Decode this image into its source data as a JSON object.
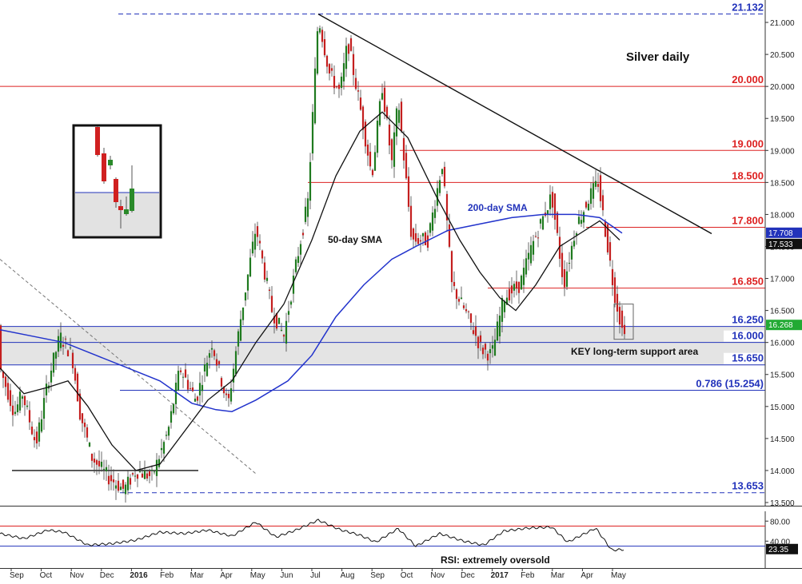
{
  "chart_data": [
    {
      "type": "candlestick",
      "title": "Silver daily",
      "ylim": [
        13.45,
        21.35
      ],
      "x_ticks": [
        "Sep",
        "Oct",
        "Nov",
        "Dec",
        "2016",
        "Feb",
        "Mar",
        "Apr",
        "May",
        "Jun",
        "Jul",
        "Aug",
        "Sep",
        "Oct",
        "Nov",
        "Dec",
        "2017",
        "Feb",
        "Mar",
        "Apr",
        "May"
      ],
      "y_ticks": [
        "21.000",
        "20.500",
        "20.000",
        "19.500",
        "19.000",
        "18.500",
        "18.000",
        "17.500",
        "17.000",
        "16.500",
        "16.000",
        "15.500",
        "15.000",
        "14.500",
        "14.000",
        "13.500"
      ],
      "y_tick_values": [
        21.0,
        20.5,
        20.0,
        19.5,
        19.0,
        18.5,
        18.0,
        17.5,
        17.0,
        16.5,
        16.0,
        15.5,
        15.0,
        14.5,
        14.0,
        13.5
      ],
      "price_path": [
        {
          "t": 0,
          "v": 15.6
        },
        {
          "t": 18,
          "v": 14.9
        },
        {
          "t": 28,
          "v": 15.2
        },
        {
          "t": 45,
          "v": 14.4
        },
        {
          "t": 60,
          "v": 15.4
        },
        {
          "t": 75,
          "v": 16.1
        },
        {
          "t": 90,
          "v": 15.8
        },
        {
          "t": 100,
          "v": 14.9
        },
        {
          "t": 115,
          "v": 14.2
        },
        {
          "t": 135,
          "v": 13.9
        },
        {
          "t": 155,
          "v": 13.7
        },
        {
          "t": 170,
          "v": 14.0
        },
        {
          "t": 190,
          "v": 13.9
        },
        {
          "t": 210,
          "v": 14.6
        },
        {
          "t": 225,
          "v": 15.6
        },
        {
          "t": 245,
          "v": 15.1
        },
        {
          "t": 265,
          "v": 16.0
        },
        {
          "t": 285,
          "v": 15.0
        },
        {
          "t": 300,
          "v": 16.3
        },
        {
          "t": 320,
          "v": 17.8
        },
        {
          "t": 340,
          "v": 16.5
        },
        {
          "t": 355,
          "v": 16.1
        },
        {
          "t": 370,
          "v": 17.2
        },
        {
          "t": 385,
          "v": 18.2
        },
        {
          "t": 398,
          "v": 21.1
        },
        {
          "t": 412,
          "v": 20.2
        },
        {
          "t": 425,
          "v": 19.9
        },
        {
          "t": 435,
          "v": 20.7
        },
        {
          "t": 450,
          "v": 19.7
        },
        {
          "t": 465,
          "v": 18.6
        },
        {
          "t": 478,
          "v": 20.0
        },
        {
          "t": 490,
          "v": 18.8
        },
        {
          "t": 498,
          "v": 19.8
        },
        {
          "t": 515,
          "v": 17.6
        },
        {
          "t": 535,
          "v": 17.6
        },
        {
          "t": 553,
          "v": 18.8
        },
        {
          "t": 565,
          "v": 16.9
        },
        {
          "t": 585,
          "v": 16.4
        },
        {
          "t": 602,
          "v": 15.9
        },
        {
          "t": 615,
          "v": 15.8
        },
        {
          "t": 630,
          "v": 16.7
        },
        {
          "t": 650,
          "v": 16.9
        },
        {
          "t": 665,
          "v": 17.5
        },
        {
          "t": 690,
          "v": 18.3
        },
        {
          "t": 705,
          "v": 16.9
        },
        {
          "t": 720,
          "v": 17.8
        },
        {
          "t": 738,
          "v": 18.3
        },
        {
          "t": 748,
          "v": 18.5
        },
        {
          "t": 760,
          "v": 17.5
        },
        {
          "t": 768,
          "v": 16.8
        },
        {
          "t": 778,
          "v": 16.2
        },
        {
          "t": 782,
          "v": 16.27
        }
      ],
      "sma_50": [
        {
          "t": 0,
          "v": 15.6
        },
        {
          "t": 30,
          "v": 15.2
        },
        {
          "t": 60,
          "v": 15.3
        },
        {
          "t": 85,
          "v": 15.4
        },
        {
          "t": 110,
          "v": 15.0
        },
        {
          "t": 140,
          "v": 14.4
        },
        {
          "t": 170,
          "v": 14.0
        },
        {
          "t": 200,
          "v": 14.1
        },
        {
          "t": 230,
          "v": 14.6
        },
        {
          "t": 260,
          "v": 15.1
        },
        {
          "t": 290,
          "v": 15.4
        },
        {
          "t": 320,
          "v": 16.0
        },
        {
          "t": 355,
          "v": 16.6
        },
        {
          "t": 390,
          "v": 17.6
        },
        {
          "t": 420,
          "v": 18.6
        },
        {
          "t": 450,
          "v": 19.3
        },
        {
          "t": 478,
          "v": 19.6
        },
        {
          "t": 510,
          "v": 19.2
        },
        {
          "t": 545,
          "v": 18.3
        },
        {
          "t": 575,
          "v": 17.6
        },
        {
          "t": 600,
          "v": 17.1
        },
        {
          "t": 625,
          "v": 16.7
        },
        {
          "t": 645,
          "v": 16.5
        },
        {
          "t": 670,
          "v": 16.9
        },
        {
          "t": 700,
          "v": 17.5
        },
        {
          "t": 725,
          "v": 17.7
        },
        {
          "t": 750,
          "v": 17.9
        },
        {
          "t": 775,
          "v": 17.6
        }
      ],
      "sma_200": [
        {
          "t": 0,
          "v": 16.2
        },
        {
          "t": 40,
          "v": 16.1
        },
        {
          "t": 80,
          "v": 16.0
        },
        {
          "t": 120,
          "v": 15.8
        },
        {
          "t": 160,
          "v": 15.6
        },
        {
          "t": 200,
          "v": 15.4
        },
        {
          "t": 240,
          "v": 15.05
        },
        {
          "t": 270,
          "v": 14.95
        },
        {
          "t": 290,
          "v": 14.92
        },
        {
          "t": 320,
          "v": 15.1
        },
        {
          "t": 360,
          "v": 15.4
        },
        {
          "t": 390,
          "v": 15.8
        },
        {
          "t": 420,
          "v": 16.4
        },
        {
          "t": 455,
          "v": 16.9
        },
        {
          "t": 490,
          "v": 17.3
        },
        {
          "t": 520,
          "v": 17.5
        },
        {
          "t": 560,
          "v": 17.75
        },
        {
          "t": 600,
          "v": 17.85
        },
        {
          "t": 640,
          "v": 17.95
        },
        {
          "t": 680,
          "v": 18.0
        },
        {
          "t": 720,
          "v": 18.0
        },
        {
          "t": 750,
          "v": 17.95
        },
        {
          "t": 778,
          "v": 17.71
        }
      ],
      "levels": [
        {
          "label": "21.132",
          "value": 21.132,
          "color": "#2233bb",
          "style": "dashed"
        },
        {
          "label": "20.000",
          "value": 20.0,
          "color": "#dd2222",
          "style": "solid"
        },
        {
          "label": "19.000",
          "value": 19.0,
          "color": "#dd2222",
          "style": "solid"
        },
        {
          "label": "18.500",
          "value": 18.5,
          "color": "#dd2222",
          "style": "solid"
        },
        {
          "label": "17.800",
          "value": 17.8,
          "color": "#dd2222",
          "style": "solid"
        },
        {
          "label": "16.850",
          "value": 16.85,
          "color": "#dd2222",
          "style": "solid"
        },
        {
          "label": "16.250",
          "value": 16.25,
          "color": "#2233bb",
          "style": "solid"
        },
        {
          "label": "16.000",
          "value": 16.0,
          "color": "#2233bb",
          "style": "solid"
        },
        {
          "label": "15.650",
          "value": 15.65,
          "color": "#2233bb",
          "style": "solid"
        },
        {
          "label": "0.786 (15.254)",
          "value": 15.254,
          "color": "#2233bb",
          "style": "solid"
        },
        {
          "label": "13.653",
          "value": 13.653,
          "color": "#2233bb",
          "style": "dashed"
        }
      ],
      "price_tags": [
        {
          "label": "17.708",
          "value": 17.708,
          "bg": "#2233bb",
          "fg": "#ffffff"
        },
        {
          "label": "17.533",
          "value": 17.533,
          "bg": "#111111",
          "fg": "#ffffff"
        },
        {
          "label": "16.268",
          "value": 16.268,
          "bg": "#22aa33",
          "fg": "#ffffff"
        }
      ],
      "annotations": [
        "50-day SMA",
        "200-day SMA",
        "KEY long-term support area"
      ],
      "support_zone": [
        15.65,
        16.25
      ],
      "trendline": [
        {
          "t": 398,
          "v": 21.13
        },
        {
          "t": 890,
          "v": 17.7
        }
      ],
      "old_downtrend": [
        {
          "t": 0,
          "v": 17.3
        },
        {
          "t": 320,
          "v": 13.95
        }
      ],
      "low_line": {
        "value": 14.0,
        "t_from": 15,
        "t_to": 248
      }
    },
    {
      "type": "line",
      "title": "RSI: extremely oversold",
      "ylim": [
        15,
        90
      ],
      "y_ticks": [
        "80.00",
        "40.00"
      ],
      "y_tick_values": [
        80,
        40
      ],
      "levels": [
        {
          "value": 70,
          "color": "#dd2222"
        },
        {
          "value": 30,
          "color": "#2233bb"
        }
      ],
      "current_tag": {
        "label": "23.35",
        "value": 23.35,
        "bg": "#111111",
        "fg": "#ffffff"
      },
      "rsi_path": [
        {
          "t": 0,
          "v": 55
        },
        {
          "t": 30,
          "v": 45
        },
        {
          "t": 60,
          "v": 62
        },
        {
          "t": 80,
          "v": 58
        },
        {
          "t": 110,
          "v": 32
        },
        {
          "t": 140,
          "v": 35
        },
        {
          "t": 170,
          "v": 42
        },
        {
          "t": 200,
          "v": 58
        },
        {
          "t": 230,
          "v": 55
        },
        {
          "t": 260,
          "v": 62
        },
        {
          "t": 290,
          "v": 50
        },
        {
          "t": 320,
          "v": 78
        },
        {
          "t": 345,
          "v": 48
        },
        {
          "t": 370,
          "v": 62
        },
        {
          "t": 398,
          "v": 82
        },
        {
          "t": 425,
          "v": 63
        },
        {
          "t": 450,
          "v": 52
        },
        {
          "t": 470,
          "v": 38
        },
        {
          "t": 498,
          "v": 65
        },
        {
          "t": 520,
          "v": 30
        },
        {
          "t": 550,
          "v": 55
        },
        {
          "t": 580,
          "v": 40
        },
        {
          "t": 605,
          "v": 32
        },
        {
          "t": 630,
          "v": 60
        },
        {
          "t": 660,
          "v": 66
        },
        {
          "t": 690,
          "v": 68
        },
        {
          "t": 710,
          "v": 38
        },
        {
          "t": 745,
          "v": 66
        },
        {
          "t": 765,
          "v": 22
        },
        {
          "t": 780,
          "v": 23.35
        }
      ]
    }
  ],
  "inset": {
    "label": "candlestick inset"
  }
}
